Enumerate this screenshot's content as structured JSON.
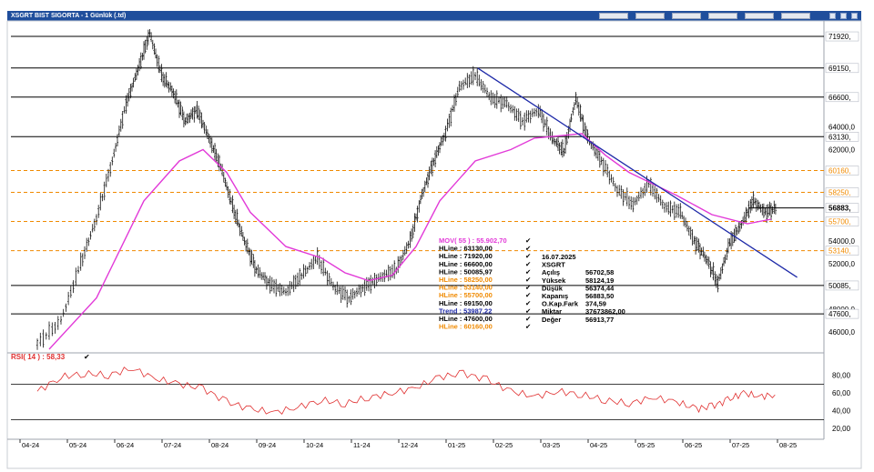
{
  "window": {
    "title": "XSGRT BIST SIGORTA - 1 Günlük (.td)"
  },
  "chart_data": [
    {
      "type": "line",
      "title": "XSGRT BIST SIGORTA - 1 Günlük (.td)",
      "x_labels": [
        "04-24",
        "05-24",
        "06-24",
        "07-24",
        "08-24",
        "09-24",
        "10-24",
        "11-24",
        "12-24",
        "01-25",
        "02-25",
        "03-25",
        "04-25",
        "05-25",
        "06-25",
        "07-25",
        "08-25"
      ],
      "ylim": [
        44500,
        72800
      ],
      "y_ticks": [
        "71920,",
        "69150,",
        "66600,",
        "64000,0",
        "63130,",
        "62000,0",
        "60160,",
        "58250,",
        "56883,",
        "55700,",
        "54000,0",
        "53140,",
        "52000,0",
        "50085,",
        "48000,0",
        "47600,",
        "46000,0"
      ],
      "price_path_points": [
        [
          "04-24",
          45000
        ],
        [
          "04-24",
          47000
        ],
        [
          "05-24",
          52000
        ],
        [
          "05-24",
          56000
        ],
        [
          "05-24",
          61000
        ],
        [
          "06-24",
          66000
        ],
        [
          "06-24",
          69000
        ],
        [
          "06-24",
          72200
        ],
        [
          "06-24",
          68500
        ],
        [
          "07-24",
          67000
        ],
        [
          "07-24",
          64500
        ],
        [
          "07-24",
          65500
        ],
        [
          "07-24",
          63000
        ],
        [
          "08-24",
          60500
        ],
        [
          "08-24",
          57000
        ],
        [
          "08-24",
          54000
        ],
        [
          "08-24",
          51500
        ],
        [
          "09-24",
          50200
        ],
        [
          "09-24",
          49500
        ],
        [
          "09-24",
          51000
        ],
        [
          "10-24",
          52500
        ],
        [
          "10-24",
          50000
        ],
        [
          "10-24",
          49000
        ],
        [
          "11-24",
          50000
        ],
        [
          "11-24",
          50800
        ],
        [
          "11-24",
          51500
        ],
        [
          "12-24",
          54000
        ],
        [
          "12-24",
          58000
        ],
        [
          "12-24",
          61000
        ],
        [
          "12-24",
          63500
        ],
        [
          "01-25",
          67500
        ],
        [
          "01-25",
          68500
        ],
        [
          "01-25",
          66500
        ],
        [
          "02-25",
          66000
        ],
        [
          "02-25",
          64500
        ],
        [
          "02-25",
          65500
        ],
        [
          "03-25",
          63000
        ],
        [
          "03-25",
          61800
        ],
        [
          "03-25",
          66500
        ],
        [
          "03-25",
          63000
        ],
        [
          "04-25",
          61000
        ],
        [
          "04-25",
          58500
        ],
        [
          "04-25",
          57200
        ],
        [
          "05-25",
          59000
        ],
        [
          "05-25",
          57000
        ],
        [
          "05-25",
          56500
        ],
        [
          "06-25",
          54000
        ],
        [
          "06-25",
          52500
        ],
        [
          "06-25",
          50300
        ],
        [
          "06-25",
          53800
        ],
        [
          "07-25",
          55500
        ],
        [
          "07-25",
          57500
        ],
        [
          "07-25",
          56500
        ],
        [
          "07-25",
          56883
        ]
      ],
      "series": [
        {
          "name": "MOV( 55 ) : 55.902,70",
          "color": "#e23ad8",
          "points": [
            [
              "04-24",
              44500
            ],
            [
              "05-24",
              49000
            ],
            [
              "06-24",
              57500
            ],
            [
              "07-24",
              61000
            ],
            [
              "07-24",
              62000
            ],
            [
              "08-24",
              60000
            ],
            [
              "08-24",
              56500
            ],
            [
              "09-24",
              53500
            ],
            [
              "10-24",
              52500
            ],
            [
              "10-24",
              51200
            ],
            [
              "11-24",
              50500
            ],
            [
              "11-24",
              51000
            ],
            [
              "12-24",
              53500
            ],
            [
              "12-24",
              57500
            ],
            [
              "01-25",
              61000
            ],
            [
              "02-25",
              62000
            ],
            [
              "02-25",
              63000
            ],
            [
              "03-25",
              63200
            ],
            [
              "03-25",
              63400
            ],
            [
              "04-25",
              61500
            ],
            [
              "04-25",
              60000
            ],
            [
              "05-25",
              59000
            ],
            [
              "05-25",
              58000
            ],
            [
              "06-25",
              56300
            ],
            [
              "07-25",
              55500
            ],
            [
              "07-25",
              55900
            ]
          ]
        },
        {
          "name": "RSI( 14 ) : 58,33",
          "color": "#e03030",
          "ylim": [
            15,
            95
          ],
          "y_ticks": [
            "80,00",
            "60,00",
            "40,00",
            "20,00"
          ],
          "points": [
            [
              "04-24",
              62
            ],
            [
              "04-24",
              78
            ],
            [
              "05-24",
              82
            ],
            [
              "05-24",
              80
            ],
            [
              "06-24",
              88
            ],
            [
              "06-24",
              76
            ],
            [
              "07-24",
              70
            ],
            [
              "07-24",
              65
            ],
            [
              "08-24",
              50
            ],
            [
              "08-24",
              42
            ],
            [
              "09-24",
              38
            ],
            [
              "09-24",
              44
            ],
            [
              "10-24",
              52
            ],
            [
              "10-24",
              48
            ],
            [
              "11-24",
              55
            ],
            [
              "11-24",
              60
            ],
            [
              "12-24",
              66
            ],
            [
              "12-24",
              78
            ],
            [
              "01-25",
              82
            ],
            [
              "01-25",
              75
            ],
            [
              "02-25",
              62
            ],
            [
              "02-25",
              56
            ],
            [
              "03-25",
              62
            ],
            [
              "03-25",
              58
            ],
            [
              "04-25",
              52
            ],
            [
              "04-25",
              48
            ],
            [
              "05-25",
              55
            ],
            [
              "05-25",
              50
            ],
            [
              "06-25",
              42
            ],
            [
              "06-25",
              45
            ],
            [
              "06-25",
              52
            ],
            [
              "07-25",
              60
            ],
            [
              "07-25",
              56
            ],
            [
              "07-25",
              58
            ]
          ]
        }
      ],
      "hlines": [
        {
          "label": "HLine : 71920,00",
          "value": 71920,
          "tag": "71920,",
          "style": "solid",
          "color": "#000000"
        },
        {
          "label": "HLine : 69150,00",
          "value": 69150,
          "tag": "69150,",
          "style": "solid",
          "color": "#000000"
        },
        {
          "label": "HLine : 66600,00",
          "value": 66600,
          "tag": "66600,",
          "style": "solid",
          "color": "#000000"
        },
        {
          "label": "HLine : 63130,00",
          "value": 63130,
          "tag": "63130,",
          "style": "solid",
          "color": "#000000"
        },
        {
          "label": "HLine : 60160,00",
          "value": 60160,
          "tag": "60160,",
          "style": "dashed",
          "color": "#f08a00"
        },
        {
          "label": "HLine : 58250,00",
          "value": 58250,
          "tag": "58250,",
          "style": "dashed",
          "color": "#f08a00"
        },
        {
          "label": "HLine : 55700,00",
          "value": 55700,
          "tag": "55700,",
          "style": "dashed",
          "color": "#f08a00"
        },
        {
          "label": "HLine : 53140,00",
          "value": 53140,
          "tag": "53140,",
          "style": "dashed",
          "color": "#f08a00"
        },
        {
          "label": "HLine : 50085,97",
          "value": 50085.97,
          "tag": "50085,",
          "style": "solid",
          "color": "#000000"
        },
        {
          "label": "HLine : 47600,00",
          "value": 47600,
          "tag": "47600,",
          "style": "solid",
          "color": "#000000"
        }
      ],
      "trend": {
        "name": "Trend : 53987,22",
        "color": "#1e2aa8",
        "from": [
          "01-25",
          69150
        ],
        "to": [
          "08-25",
          50800
        ]
      },
      "last_price": {
        "value": 56883.5,
        "tag": "56883,"
      },
      "legend": [
        {
          "text": "MOV( 55 ) : 55.902,70",
          "color": "#e23ad8"
        },
        {
          "text": "HLine        : 63130,00",
          "color": "#000000"
        },
        {
          "text": "HLine        : 71920,00",
          "color": "#000000"
        },
        {
          "text": "HLine        : 66600,00",
          "color": "#000000"
        },
        {
          "text": "HLine        : 50085,97",
          "color": "#000000"
        },
        {
          "text": "HLine        : 58250,00",
          "color": "#f08a00"
        },
        {
          "text": "HLine        : 53140,00",
          "color": "#f08a00"
        },
        {
          "text": "HLine        : 55700,00",
          "color": "#f08a00"
        },
        {
          "text": "HLine        : 69150,00",
          "color": "#000000"
        },
        {
          "text": "Trend        : 53987,22",
          "color": "#1e2aa8"
        },
        {
          "text": "HLine        : 47600,00",
          "color": "#000000"
        },
        {
          "text": "HLine        : 60160,00",
          "color": "#f08a00"
        }
      ],
      "info": {
        "date": "16.07.2025",
        "symbol": "XSGRT",
        "rows": [
          {
            "label": "Açılış",
            "value": "56702,58"
          },
          {
            "label": "Yüksek",
            "value": "58124,19"
          },
          {
            "label": "Düşük",
            "value": "56374,44"
          },
          {
            "label": "Kapanış",
            "value": "56883,50"
          },
          {
            "label": "O.Kap.Fark",
            "value": "374,59"
          },
          {
            "label": "Miktar",
            "value": "37673862,00"
          },
          {
            "label": "Değer",
            "value": "56913,77"
          }
        ]
      }
    }
  ]
}
